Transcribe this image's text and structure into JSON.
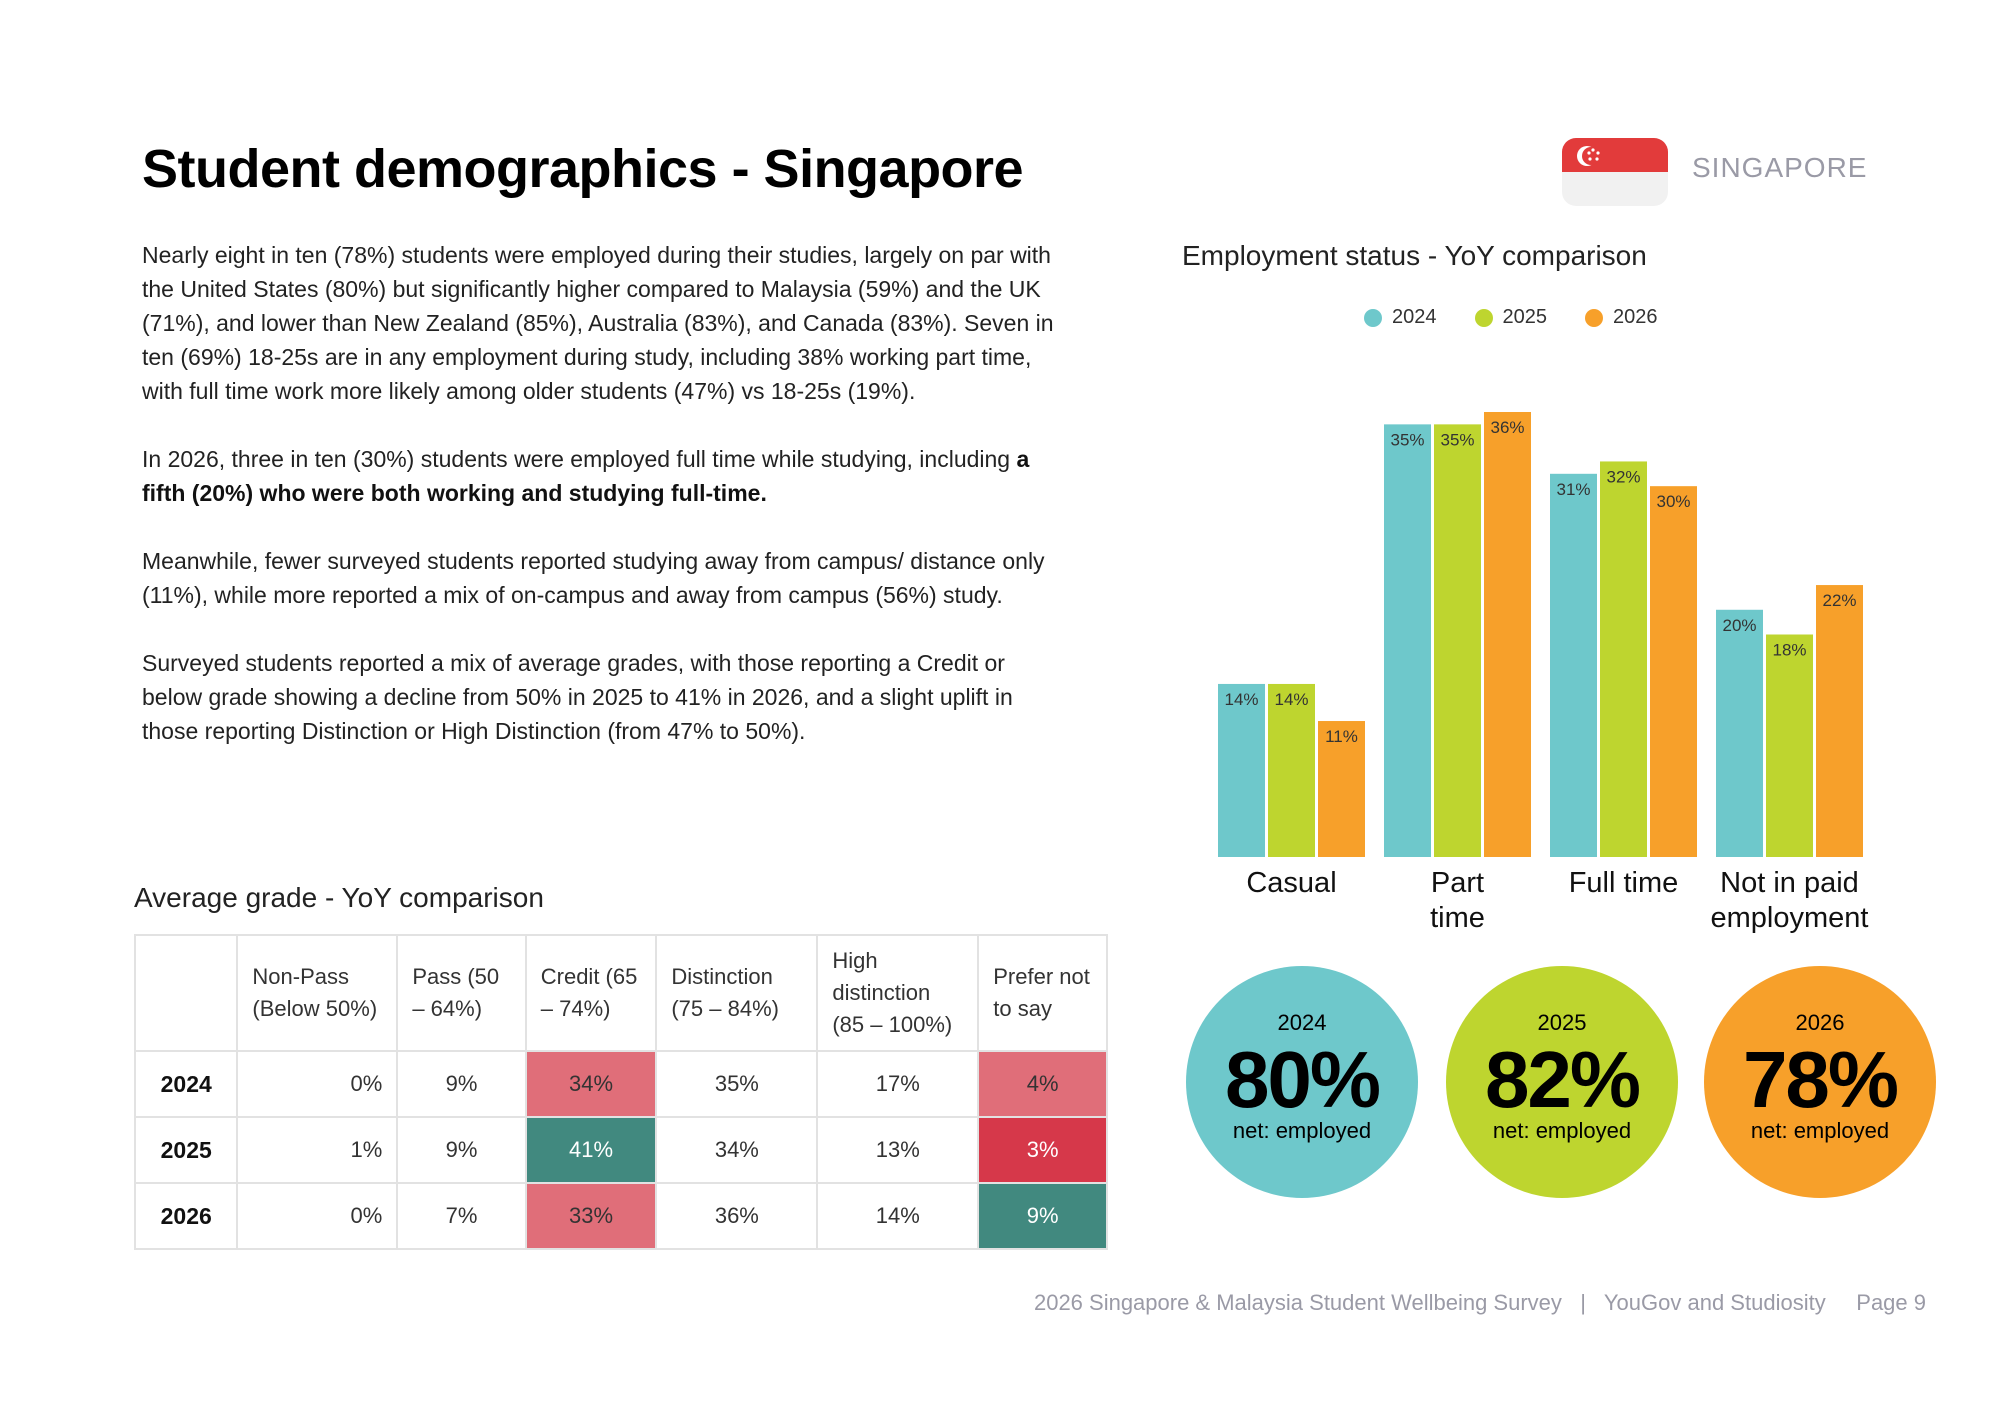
{
  "page": {
    "title": "Student demographics - Singapore",
    "country_label": "SINGAPORE",
    "paragraphs": [
      "Nearly eight in ten (78%) students were employed during their studies, largely on par with the United States (80%) but significantly higher compared to Malaysia (59%) and the UK (71%), and lower than New Zealand (85%), Australia (83%), and Canada (83%). Seven in ten (69%) 18-25s are in any employment during study, including 38% working part time, with full time work more likely among older students (47%) vs 18-25s (19%).",
      "Meanwhile, fewer surveyed students reported studying away from campus/ distance only (11%), while more reported a mix of on-campus and away from campus (56%) study.",
      "Surveyed students reported a mix of average grades, with those reporting a Credit or below grade showing a decline from 50% in 2025 to 41% in 2026, and a slight uplift in those reporting Distinction or High Distinction (from 47% to 50%)."
    ],
    "p2_start": "In 2026, three in ten (30%) students were employed full time while studying, including ",
    "p2_bold": "a fifth (20%) who were both working and studying full-time."
  },
  "grade_table": {
    "title": "Average grade - YoY comparison",
    "headers": [
      "",
      "Non-Pass (Below 50%)",
      "Pass (50 – 64%)",
      "Credit (65 – 74%)",
      "Distinction (75 – 84%)",
      "High distinction (85 – 100%)",
      "Prefer not to say"
    ],
    "rows": [
      {
        "year": "2024",
        "cells": [
          "0%",
          "9%",
          "34%",
          "35%",
          "17%",
          "4%"
        ]
      },
      {
        "year": "2025",
        "cells": [
          "1%",
          "9%",
          "41%",
          "34%",
          "13%",
          "3%"
        ]
      },
      {
        "year": "2026",
        "cells": [
          "0%",
          "7%",
          "33%",
          "36%",
          "14%",
          "9%"
        ]
      }
    ]
  },
  "colors": {
    "2024": "#6ec8cb",
    "2025": "#bed52f",
    "2026": "#f7a02a",
    "heat_pink": "#e06e79",
    "heat_red": "#d6384a",
    "heat_teal": "#41897f",
    "flag_red": "#e23b3b"
  },
  "chart_data": {
    "type": "bar",
    "title": "Employment status - YoY comparison",
    "categories": [
      "Casual",
      "Part time",
      "Full time",
      "Not in paid employment"
    ],
    "series": [
      {
        "name": "2024",
        "values": [
          14,
          35,
          31,
          20
        ]
      },
      {
        "name": "2025",
        "values": [
          14,
          35,
          32,
          18
        ]
      },
      {
        "name": "2026",
        "values": [
          11,
          36,
          30,
          22
        ]
      }
    ],
    "value_suffix": "%",
    "legend_position": "top",
    "ylim": [
      0,
      36
    ]
  },
  "circles": [
    {
      "year": "2024",
      "value": "80%",
      "label": "net: employed"
    },
    {
      "year": "2025",
      "value": "82%",
      "label": "net: employed"
    },
    {
      "year": "2026",
      "value": "78%",
      "label": "net: employed"
    }
  ],
  "footer": {
    "survey": "2026 Singapore & Malaysia Student Wellbeing Survey",
    "separator": "|",
    "org": "YouGov and Studiosity",
    "page": "Page 9"
  }
}
